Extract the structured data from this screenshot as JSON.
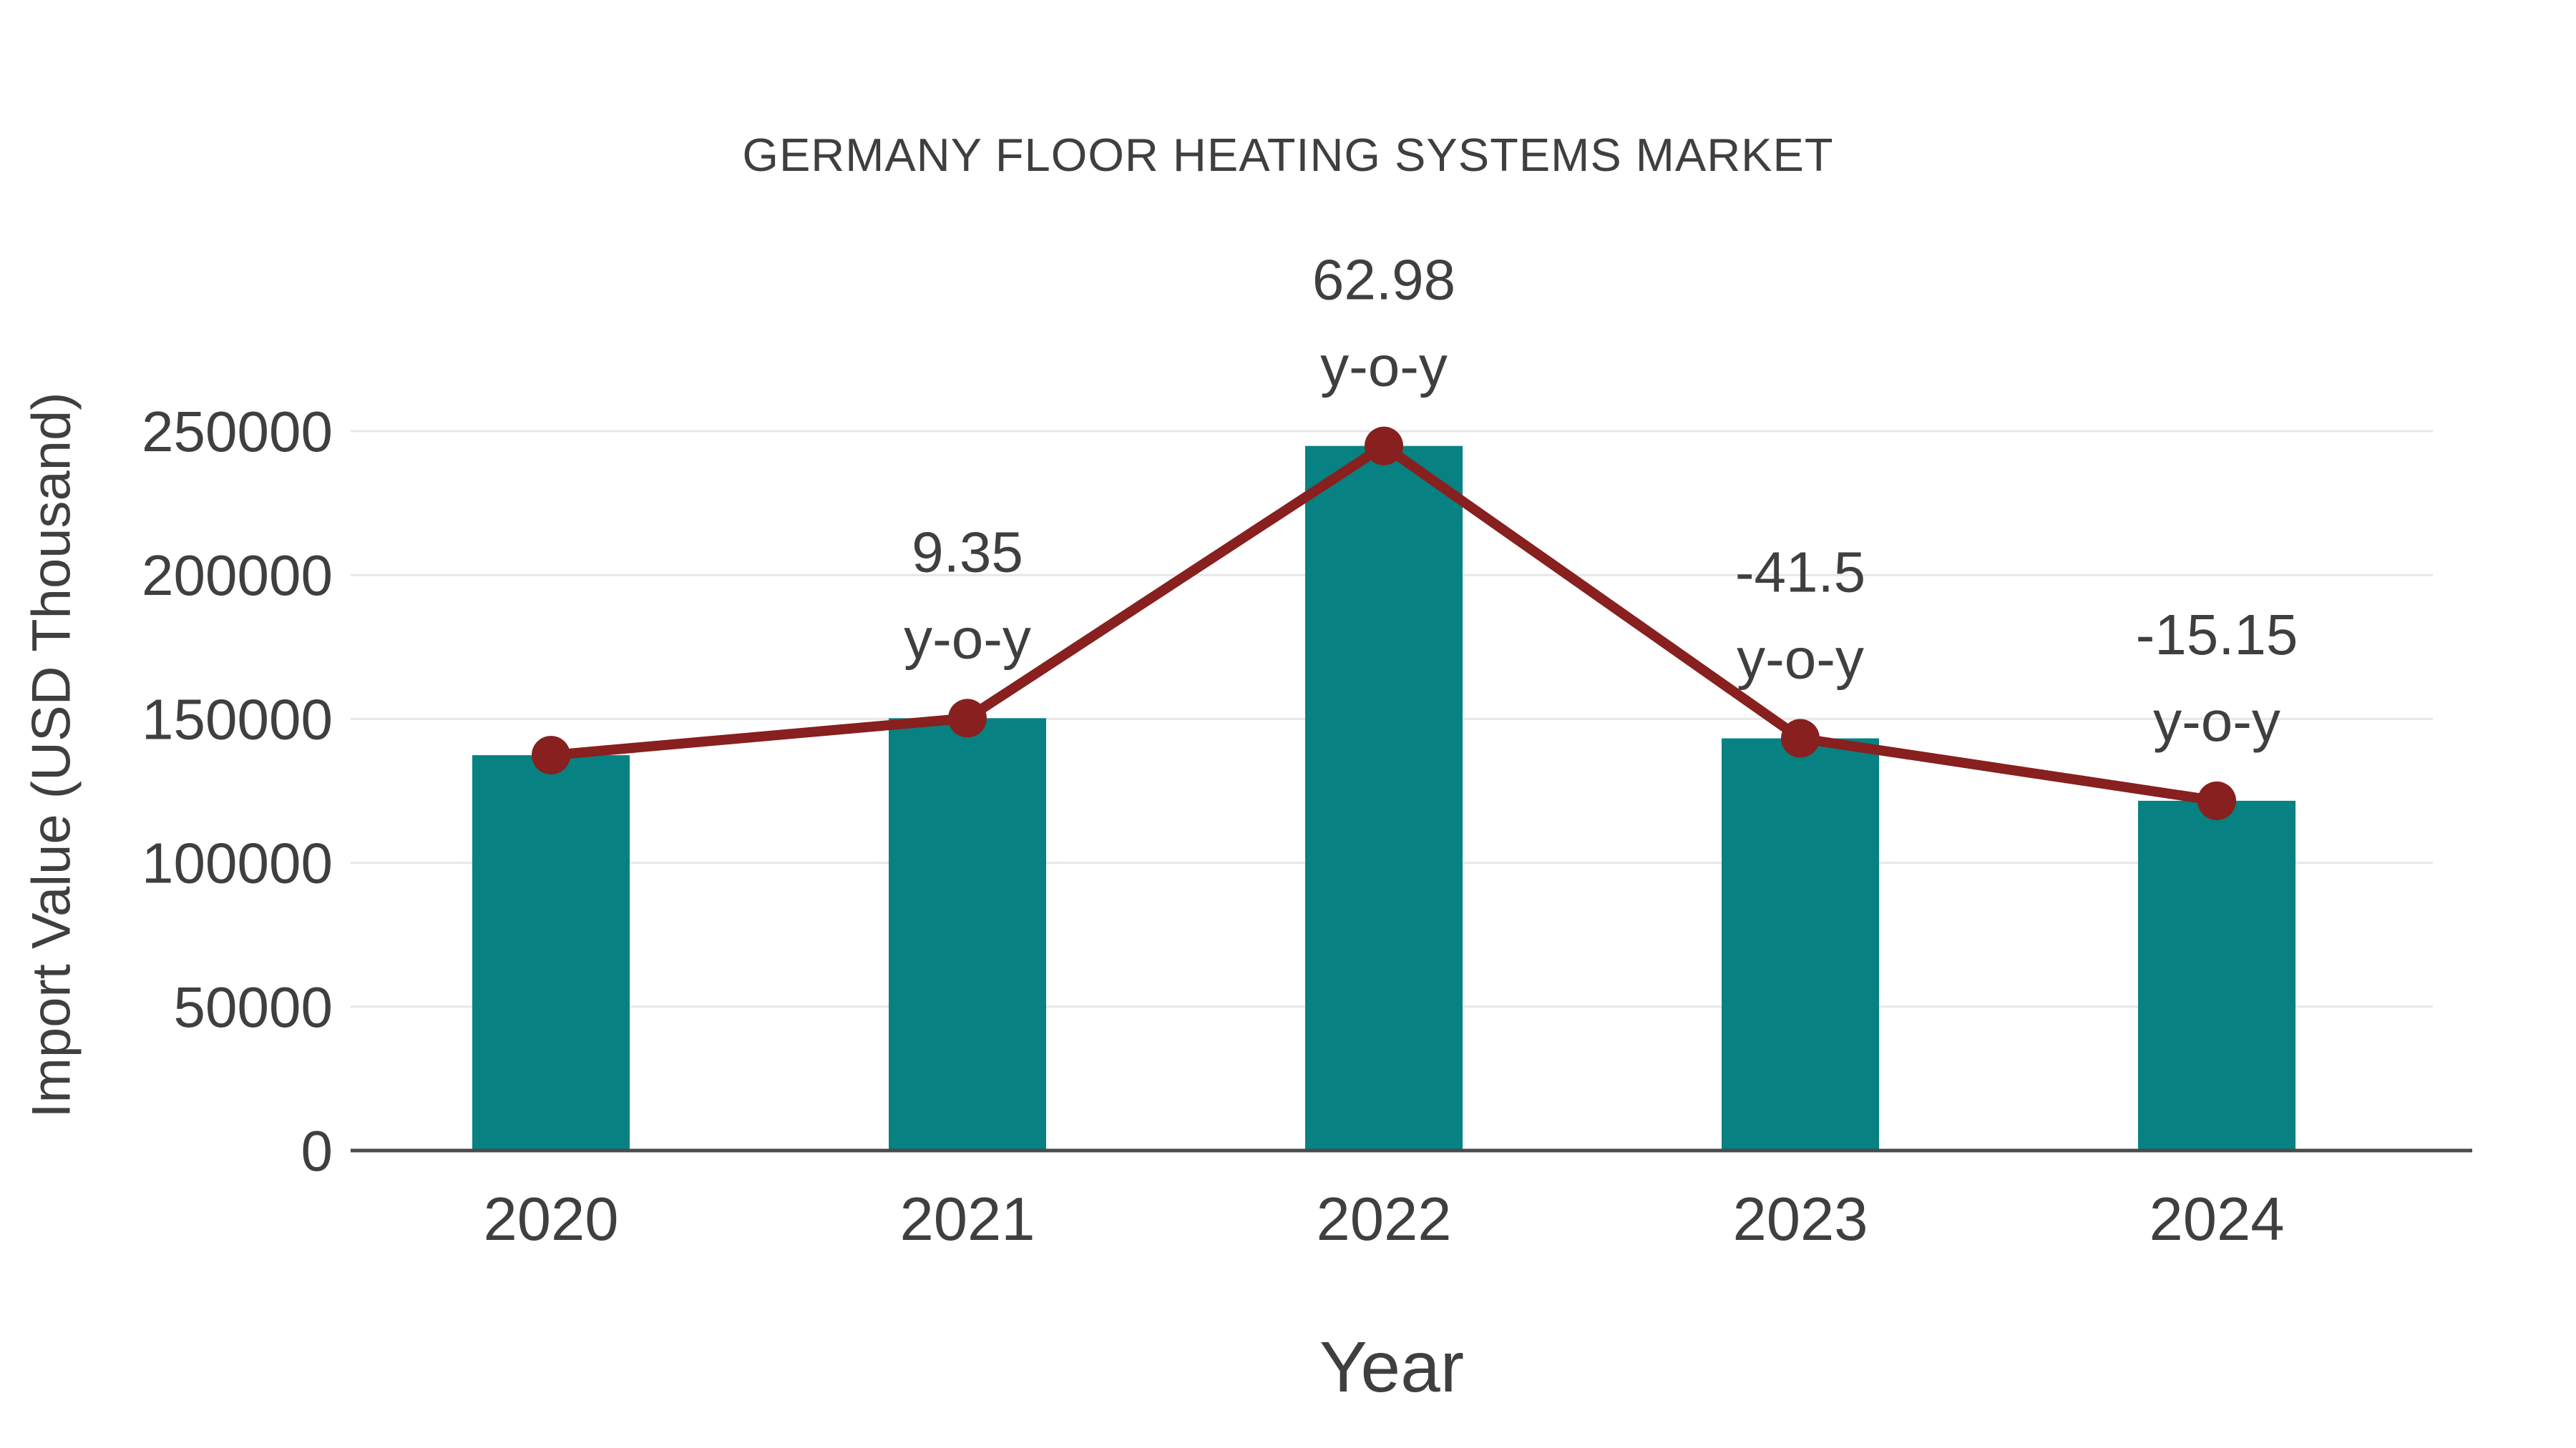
{
  "title": "GERMANY FLOOR HEATING SYSTEMS MARKET",
  "colors": {
    "bar": "#078181",
    "line": "#87201e",
    "marker": "#87201e",
    "grid": "#e7e7e7",
    "axis": "#4a4a4a",
    "text": "#3f3f3f"
  },
  "chart_data": {
    "type": "bar",
    "subtype": "bar-with-line-overlay",
    "title": "GERMANY FLOOR HEATING SYSTEMS MARKET",
    "xlabel": "Year",
    "ylabel": "Import Value (USD Thousand)",
    "categories": [
      "2020",
      "2021",
      "2022",
      "2023",
      "2024"
    ],
    "series": [
      {
        "name": "Import Value (USD Thousand)",
        "type": "bar",
        "values": [
          137400,
          150250,
          244870,
          143250,
          121550
        ]
      },
      {
        "name": "Trend",
        "type": "line",
        "values": [
          137400,
          150250,
          244870,
          143250,
          121550
        ]
      }
    ],
    "annotations": [
      {
        "category": "2021",
        "line1": "9.35",
        "line2": "y-o-y"
      },
      {
        "category": "2022",
        "line1": "62.98",
        "line2": "y-o-y"
      },
      {
        "category": "2023",
        "line1": "-41.5",
        "line2": "y-o-y"
      },
      {
        "category": "2024",
        "line1": "-15.15",
        "line2": "y-o-y"
      }
    ],
    "yticks": [
      0,
      50000,
      100000,
      150000,
      200000,
      250000
    ],
    "ylim": [
      0,
      250000
    ],
    "grid": "horizontal",
    "legend_position": "none"
  }
}
